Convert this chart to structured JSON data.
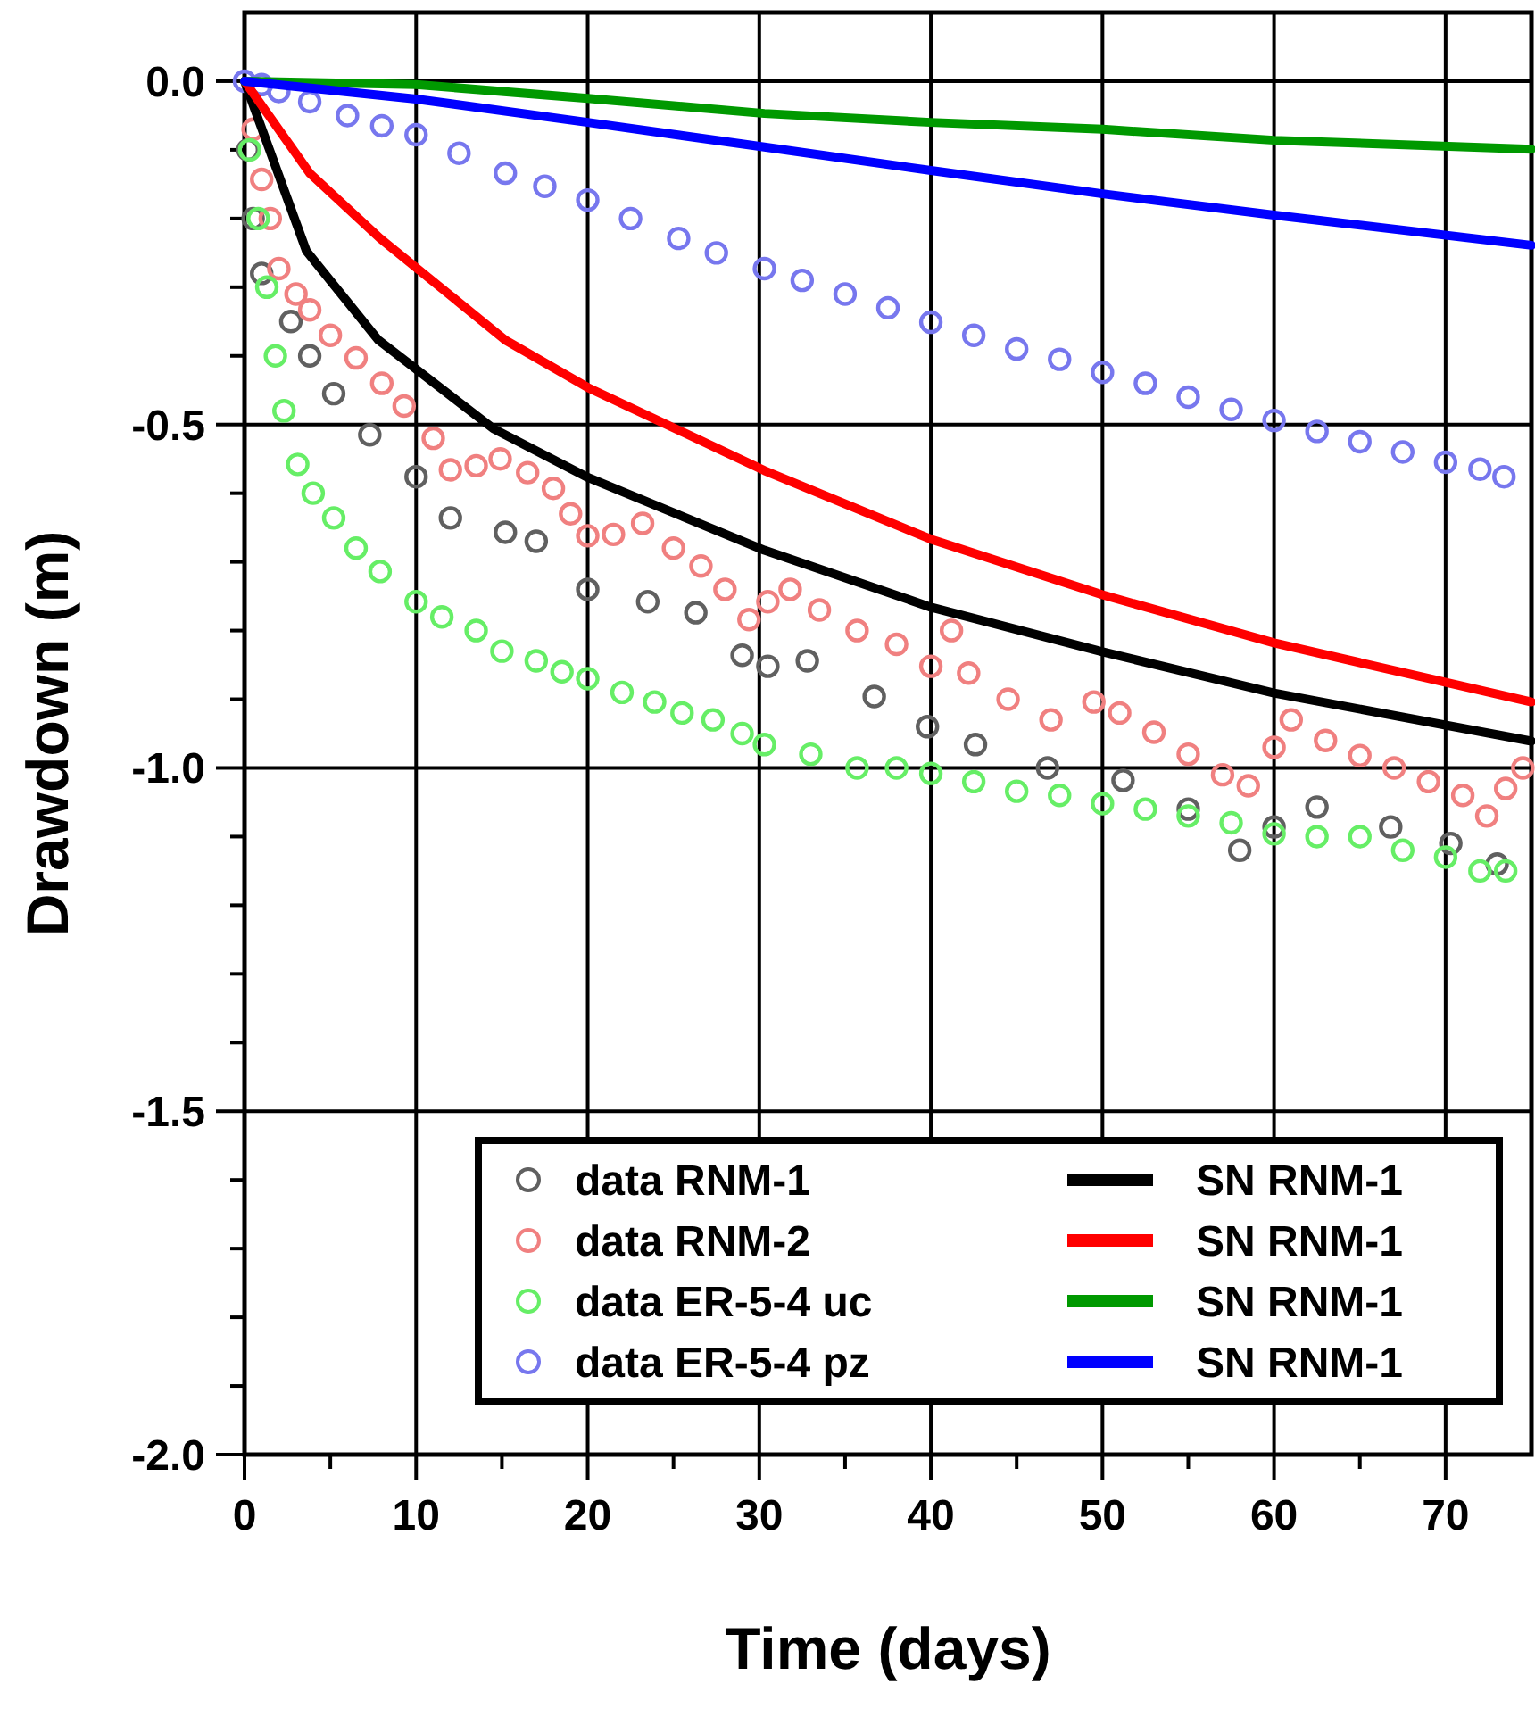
{
  "chart_data": {
    "type": "line",
    "xlabel": "Time (days)",
    "ylabel": "Drawdown (m)",
    "xlim": [
      0,
      75
    ],
    "ylim": [
      -2.0,
      0.1
    ],
    "xticks": [
      0,
      {
        "value": 5,
        "label": null
      },
      10,
      {
        "value": 15,
        "label": null
      },
      20,
      {
        "value": 25,
        "label": null
      },
      30,
      {
        "value": 35,
        "label": null
      },
      40,
      {
        "value": 45,
        "label": null
      },
      50,
      {
        "value": 55,
        "label": null
      },
      60,
      {
        "value": 65,
        "label": null
      },
      70
    ],
    "yticks": [
      {
        "value": 0,
        "label": "0.0"
      },
      {
        "value": -0.1,
        "label": null
      },
      {
        "value": -0.2,
        "label": null
      },
      {
        "value": -0.3,
        "label": null
      },
      {
        "value": -0.4,
        "label": null
      },
      {
        "value": -0.5,
        "label": "-0.5"
      },
      {
        "value": -0.6,
        "label": null
      },
      {
        "value": -0.7,
        "label": null
      },
      {
        "value": -0.8,
        "label": null
      },
      {
        "value": -0.9,
        "label": null
      },
      {
        "value": -1.0,
        "label": "-1.0"
      },
      {
        "value": -1.1,
        "label": null
      },
      {
        "value": -1.2,
        "label": null
      },
      {
        "value": -1.3,
        "label": null
      },
      {
        "value": -1.4,
        "label": null
      },
      {
        "value": -1.5,
        "label": "-1.5"
      },
      {
        "value": -1.6,
        "label": null
      },
      {
        "value": -1.7,
        "label": null
      },
      {
        "value": -1.8,
        "label": null
      },
      {
        "value": -1.9,
        "label": null
      },
      {
        "value": -2.0,
        "label": "-2.0"
      }
    ],
    "grid": true,
    "legend": "bottom right",
    "series": [
      {
        "name": "data RNM-1",
        "type": "scatter",
        "marker": "circle",
        "color": "#606060",
        "x": [
          0.2,
          0.5,
          1,
          2.7,
          3.8,
          5.2,
          7.3,
          10,
          12,
          15.2,
          17,
          20,
          23.5,
          26.3,
          29,
          30.5,
          32.8,
          36.7,
          39.8,
          42.6,
          46.8,
          51.2,
          55,
          58,
          60,
          62.5,
          66.8,
          70.3,
          73
        ],
        "values": [
          -0.1,
          -0.2,
          -0.28,
          -0.35,
          -0.4,
          -0.455,
          -0.515,
          -0.576,
          -0.636,
          -0.657,
          -0.67,
          -0.74,
          -0.758,
          -0.774,
          -0.836,
          -0.852,
          -0.844,
          -0.896,
          -0.94,
          -0.966,
          -1.0,
          -1.018,
          -1.06,
          -1.12,
          -1.086,
          -1.057,
          -1.086,
          -1.11,
          -1.14
        ]
      },
      {
        "name": "data RNM-2",
        "type": "scatter",
        "marker": "circle",
        "color": "#f08080",
        "x": [
          0.5,
          1,
          1.5,
          2,
          3,
          3.8,
          5,
          6.5,
          8,
          9.3,
          11,
          12,
          13.5,
          14.9,
          16.5,
          18,
          19,
          20,
          21.5,
          23.2,
          25,
          26.6,
          28,
          29.4,
          30.5,
          31.8,
          33.5,
          35.7,
          38,
          40,
          41.2,
          42.2,
          44.5,
          47,
          49.5,
          51,
          53,
          55,
          57,
          58.5,
          60,
          61,
          63,
          65,
          67,
          69,
          71,
          72.4,
          73.5,
          74.5
        ],
        "values": [
          -0.07,
          -0.143,
          -0.2,
          -0.273,
          -0.31,
          -0.333,
          -0.37,
          -0.403,
          -0.44,
          -0.473,
          -0.52,
          -0.566,
          -0.56,
          -0.55,
          -0.57,
          -0.593,
          -0.63,
          -0.662,
          -0.66,
          -0.644,
          -0.68,
          -0.706,
          -0.74,
          -0.784,
          -0.758,
          -0.74,
          -0.77,
          -0.8,
          -0.82,
          -0.852,
          -0.8,
          -0.862,
          -0.9,
          -0.93,
          -0.904,
          -0.92,
          -0.948,
          -0.98,
          -1.01,
          -1.026,
          -0.97,
          -0.93,
          -0.96,
          -0.982,
          -1.0,
          -1.02,
          -1.04,
          -1.07,
          -1.03,
          -1.0
        ]
      },
      {
        "name": "data ER-5-4 uc",
        "type": "scatter",
        "marker": "circle",
        "color": "#66ee66",
        "x": [
          0.3,
          0.8,
          1.3,
          1.8,
          2.3,
          3.1,
          4,
          5.2,
          6.5,
          7.9,
          10,
          11.5,
          13.5,
          15,
          17,
          18.5,
          20,
          22,
          23.9,
          25.5,
          27.3,
          29,
          30.3,
          33,
          35.7,
          38,
          40,
          42.5,
          45,
          47.5,
          50,
          52.5,
          55,
          57.5,
          60,
          62.5,
          65,
          67.5,
          70,
          72,
          73.5
        ],
        "values": [
          -0.1,
          -0.2,
          -0.3,
          -0.4,
          -0.48,
          -0.558,
          -0.6,
          -0.636,
          -0.68,
          -0.714,
          -0.758,
          -0.78,
          -0.8,
          -0.83,
          -0.844,
          -0.86,
          -0.87,
          -0.89,
          -0.904,
          -0.92,
          -0.93,
          -0.95,
          -0.966,
          -0.98,
          -1.0,
          -1.0,
          -1.008,
          -1.02,
          -1.034,
          -1.04,
          -1.052,
          -1.06,
          -1.07,
          -1.08,
          -1.096,
          -1.1,
          -1.1,
          -1.12,
          -1.13,
          -1.15,
          -1.15
        ]
      },
      {
        "name": "data ER-5-4 pz",
        "type": "scatter",
        "marker": "circle",
        "color": "#7777ee",
        "x": [
          0,
          1,
          2,
          3.8,
          6,
          8,
          10,
          12.5,
          15.2,
          17.5,
          20,
          22.5,
          25.3,
          27.5,
          30.3,
          32.5,
          35,
          37.5,
          40,
          42.5,
          45,
          47.5,
          50,
          52.5,
          55,
          57.5,
          60,
          62.5,
          65,
          67.5,
          70,
          72,
          73.4
        ],
        "values": [
          0,
          -0.005,
          -0.015,
          -0.03,
          -0.05,
          -0.065,
          -0.078,
          -0.105,
          -0.134,
          -0.153,
          -0.173,
          -0.2,
          -0.229,
          -0.25,
          -0.273,
          -0.29,
          -0.31,
          -0.33,
          -0.351,
          -0.37,
          -0.39,
          -0.405,
          -0.424,
          -0.44,
          -0.46,
          -0.478,
          -0.494,
          -0.51,
          -0.525,
          -0.54,
          -0.555,
          -0.565,
          -0.576
        ]
      },
      {
        "name": "SN RNM-1",
        "color": "#000000",
        "x": [
          0,
          3.6,
          7.8,
          14.5,
          20,
          30.3,
          40,
          50,
          60,
          75
        ],
        "values": [
          0,
          -0.247,
          -0.377,
          -0.506,
          -0.577,
          -0.683,
          -0.766,
          -0.831,
          -0.891,
          -0.961
        ]
      },
      {
        "name": "SN RNM-1",
        "color": "#ff0000",
        "x": [
          0,
          3.8,
          7.9,
          15.2,
          20,
          30.3,
          40,
          50,
          60,
          75
        ],
        "values": [
          0,
          -0.134,
          -0.229,
          -0.377,
          -0.446,
          -0.567,
          -0.667,
          -0.748,
          -0.818,
          -0.904
        ]
      },
      {
        "name": "SN RNM-1",
        "color": "#009900",
        "x": [
          0,
          10,
          20,
          30.3,
          40,
          50,
          60,
          75
        ],
        "values": [
          0,
          -0.005,
          -0.025,
          -0.047,
          -0.06,
          -0.07,
          -0.086,
          -0.099
        ]
      },
      {
        "name": "SN RNM-1",
        "color": "#0000ff",
        "x": [
          0,
          10,
          20,
          30.3,
          40,
          50,
          60,
          75
        ],
        "values": [
          0,
          -0.026,
          -0.06,
          -0.096,
          -0.13,
          -0.164,
          -0.195,
          -0.239
        ]
      }
    ]
  }
}
